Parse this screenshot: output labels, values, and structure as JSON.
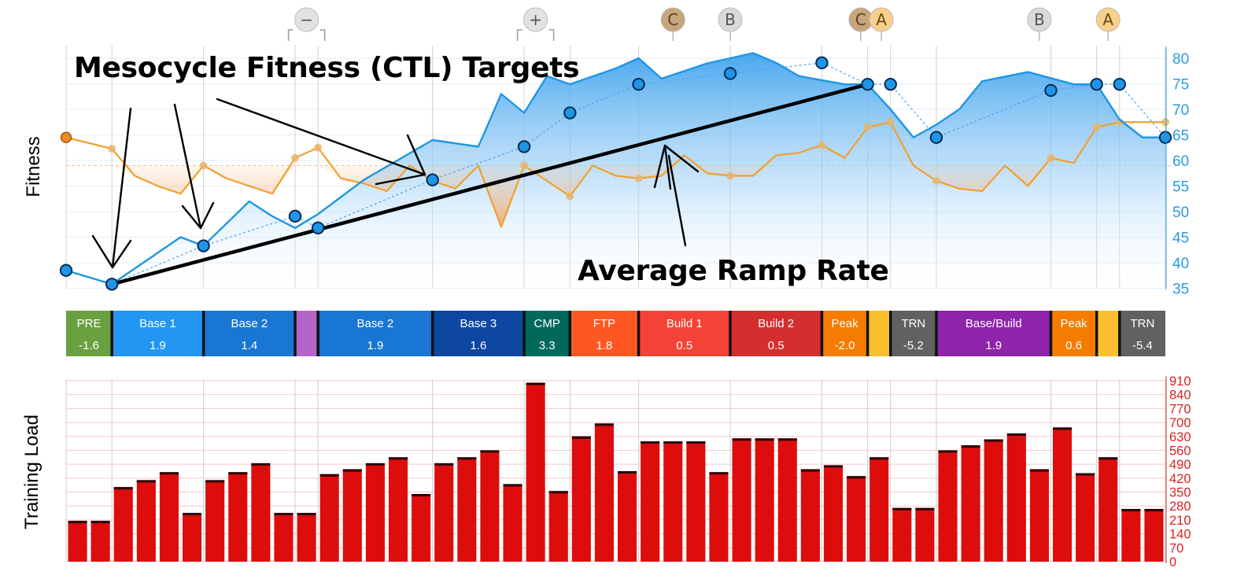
{
  "annotations": {
    "targets_label": "Mesocycle Fitness (CTL) Targets",
    "ramp_label": "Average Ramp Rate"
  },
  "chart_data": [
    {
      "type": "line",
      "ylabel": "Fitness",
      "ylim": [
        35,
        82
      ],
      "y_ticks": [
        35,
        40,
        45,
        50,
        55,
        60,
        65,
        70,
        75,
        80
      ],
      "x_range": [
        0,
        48
      ],
      "grid": true,
      "colors": {
        "fitness": "#1e96e6",
        "form": "#f0a030",
        "ramp": "#000000"
      },
      "series": [
        {
          "key": "fitness",
          "x": [
            0,
            2,
            5,
            6,
            8,
            9,
            10,
            11,
            13,
            16,
            18,
            19,
            20,
            21,
            22,
            24,
            25,
            26,
            28,
            30,
            31,
            32,
            34,
            35,
            36,
            37,
            38,
            39,
            40,
            42,
            44,
            45,
            46,
            47,
            48
          ],
          "values": [
            38.5,
            35.8,
            45.0,
            43.3,
            52.0,
            49.1,
            46.8,
            49.5,
            56.2,
            64.0,
            62.7,
            73.0,
            69.3,
            76.5,
            74.9,
            78.0,
            80.0,
            76.0,
            79.0,
            81.0,
            79.1,
            76.5,
            74.9,
            74.9,
            70.0,
            64.5,
            67.0,
            70.0,
            75.5,
            77.3,
            74.9,
            74.9,
            68.0,
            64.5,
            64.5
          ]
        },
        {
          "key": "form",
          "x": [
            0,
            2,
            3,
            4,
            5,
            6,
            7,
            8,
            9,
            10,
            11,
            12,
            13,
            14,
            15,
            16,
            17,
            18,
            19,
            20,
            21,
            22,
            23,
            24,
            25,
            26,
            27,
            28,
            29,
            30,
            31,
            32,
            33,
            34,
            35,
            36,
            37,
            38,
            39,
            40,
            41,
            42,
            43,
            44,
            45,
            46,
            47,
            48
          ],
          "values": [
            64.5,
            62.3,
            57.0,
            55.0,
            53.5,
            59.0,
            56.5,
            55.0,
            53.5,
            60.5,
            62.5,
            56.5,
            55.5,
            54.0,
            59.0,
            56.0,
            54.5,
            59.0,
            47.0,
            59.0,
            56.0,
            53.0,
            59.0,
            57.0,
            56.5,
            57.0,
            61.0,
            57.5,
            57.0,
            57.0,
            61.0,
            61.5,
            63.0,
            60.5,
            66.5,
            67.5,
            59.0,
            56.0,
            54.5,
            54.0,
            59.0,
            55.0,
            60.5,
            59.5,
            66.5,
            67.5,
            67.5,
            67.5
          ]
        }
      ],
      "targets": [
        {
          "x": 0,
          "y": 38.5
        },
        {
          "x": 2,
          "y": 35.8
        },
        {
          "x": 6,
          "y": 43.3
        },
        {
          "x": 10,
          "y": 49.1
        },
        {
          "x": 11,
          "y": 46.8
        },
        {
          "x": 16,
          "y": 56.2
        },
        {
          "x": 20,
          "y": 62.7
        },
        {
          "x": 22,
          "y": 69.3
        },
        {
          "x": 25,
          "y": 74.9
        },
        {
          "x": 29,
          "y": 77.0
        },
        {
          "x": 33,
          "y": 79.1
        },
        {
          "x": 35,
          "y": 74.9
        },
        {
          "x": 36,
          "y": 74.9
        },
        {
          "x": 38,
          "y": 64.5
        },
        {
          "x": 43,
          "y": 73.7
        },
        {
          "x": 45,
          "y": 74.9
        },
        {
          "x": 46,
          "y": 74.9
        },
        {
          "x": 48,
          "y": 64.5
        }
      ],
      "ramp_line": {
        "x": [
          2,
          35
        ],
        "y": [
          35.8,
          74.9
        ]
      },
      "form_baseline": 59.0,
      "event_markers": [
        {
          "label": "−",
          "x": 10.5,
          "color": "#e2e2e2",
          "text": "#555555",
          "bracket": true
        },
        {
          "label": "+",
          "x": 20.5,
          "color": "#e2e2e2",
          "text": "#555555",
          "bracket": true
        },
        {
          "label": "C",
          "x": 26.5,
          "color": "#c8a57b",
          "text": "#5a4025",
          "bracket": false
        },
        {
          "label": "B",
          "x": 29,
          "color": "#d9d9d9",
          "text": "#555555",
          "bracket": false
        },
        {
          "label": "C",
          "x": 34.7,
          "color": "#c8a57b",
          "text": "#5a4025",
          "bracket": false
        },
        {
          "label": "A",
          "x": 35.6,
          "color": "#f9cf8c",
          "text": "#6a4a10",
          "bracket": false
        },
        {
          "label": "B",
          "x": 42.5,
          "color": "#d9d9d9",
          "text": "#555555",
          "bracket": false
        },
        {
          "label": "A",
          "x": 45.5,
          "color": "#f9cf8c",
          "text": "#6a4a10",
          "bracket": false
        }
      ]
    },
    {
      "type": "table",
      "phases": [
        {
          "name": "PRE",
          "value": "-1.6",
          "start": 0,
          "end": 2,
          "color": "#6aa040"
        },
        {
          "name": "Base 1",
          "value": "1.9",
          "start": 2,
          "end": 6,
          "color": "#2196f3"
        },
        {
          "name": "Base 2",
          "value": "1.4",
          "start": 6,
          "end": 10,
          "color": "#1976d2"
        },
        {
          "name": "",
          "value": "",
          "start": 10,
          "end": 11,
          "color": "#b565c8"
        },
        {
          "name": "Base 2",
          "value": "1.9",
          "start": 11,
          "end": 16,
          "color": "#1976d2"
        },
        {
          "name": "Base 3",
          "value": "1.6",
          "start": 16,
          "end": 20,
          "color": "#0d47a1"
        },
        {
          "name": "CMP",
          "value": "3.3",
          "start": 20,
          "end": 22,
          "color": "#00695c"
        },
        {
          "name": "FTP",
          "value": "1.8",
          "start": 22,
          "end": 25,
          "color": "#ff5722"
        },
        {
          "name": "Build 1",
          "value": "0.5",
          "start": 25,
          "end": 29,
          "color": "#f44336"
        },
        {
          "name": "Build 2",
          "value": "0.5",
          "start": 29,
          "end": 33,
          "color": "#d32f2f"
        },
        {
          "name": "Peak",
          "value": "-2.0",
          "start": 33,
          "end": 35,
          "color": "#f57c00"
        },
        {
          "name": "",
          "value": "",
          "start": 35,
          "end": 36,
          "color": "#fbc02d"
        },
        {
          "name": "TRN",
          "value": "-5.2",
          "start": 36,
          "end": 38,
          "color": "#616161"
        },
        {
          "name": "Base/Build",
          "value": "1.9",
          "start": 38,
          "end": 43,
          "color": "#8e24aa"
        },
        {
          "name": "Peak",
          "value": "0.6",
          "start": 43,
          "end": 45,
          "color": "#f57c00"
        },
        {
          "name": "",
          "value": "",
          "start": 45,
          "end": 46,
          "color": "#fbc02d"
        },
        {
          "name": "TRN",
          "value": "-5.4",
          "start": 46,
          "end": 48,
          "color": "#616161"
        }
      ]
    },
    {
      "type": "bar",
      "ylabel": "Training Load",
      "ylim": [
        0,
        910
      ],
      "y_ticks": [
        0,
        70,
        140,
        210,
        280,
        350,
        420,
        490,
        560,
        630,
        700,
        770,
        840,
        910
      ],
      "color": "#dd0d0d",
      "values": [
        205,
        205,
        375,
        410,
        450,
        245,
        410,
        450,
        495,
        245,
        245,
        440,
        465,
        495,
        525,
        340,
        495,
        525,
        560,
        390,
        900,
        355,
        630,
        695,
        455,
        605,
        605,
        605,
        450,
        620,
        620,
        620,
        465,
        485,
        430,
        525,
        270,
        270,
        560,
        585,
        615,
        645,
        465,
        675,
        445,
        525,
        265,
        265
      ]
    }
  ]
}
